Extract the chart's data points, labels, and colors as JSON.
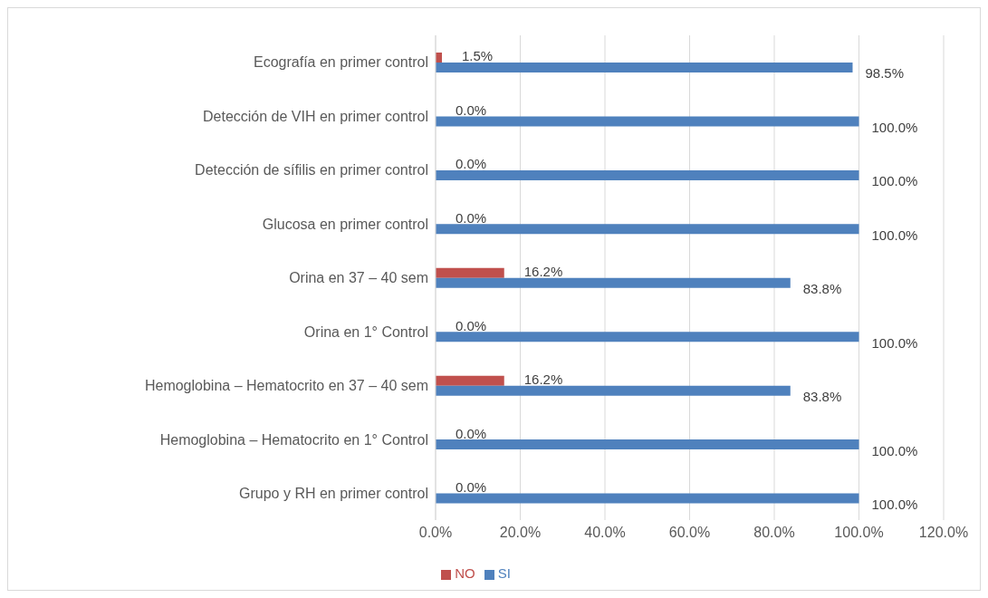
{
  "chart_data": {
    "type": "bar",
    "orientation": "horizontal",
    "categories": [
      "Ecografía en primer control",
      "Detección de VIH en primer control",
      "Detección de sífilis en primer control",
      "Glucosa en primer control",
      "Orina en 37 – 40 sem",
      "Orina en 1° Control",
      "Hemoglobina – Hematocrito en 37 – 40 sem",
      "Hemoglobina – Hematocrito en 1° Control",
      "Grupo y RH en primer control"
    ],
    "series": [
      {
        "name": "NO",
        "color": "#c0504d",
        "values": [
          1.5,
          0,
          0,
          0,
          16.2,
          0,
          16.2,
          0,
          0
        ],
        "value_labels": [
          "1.5%",
          "0.0%",
          "0.0%",
          "0.0%",
          "16.2%",
          "0.0%",
          "16.2%",
          "0.0%",
          "0.0%"
        ]
      },
      {
        "name": "SI",
        "color": "#4f81bd",
        "values": [
          98.5,
          100,
          100,
          100,
          83.8,
          100,
          83.8,
          100,
          100
        ],
        "value_labels": [
          "98.5%",
          "100.0%",
          "100.0%",
          "100.0%",
          "83.8%",
          "100.0%",
          "83.8%",
          "100.0%",
          "100.0%"
        ]
      }
    ],
    "xlim": [
      0,
      120
    ],
    "xticks": [
      {
        "value": 0,
        "label": "0.0%"
      },
      {
        "value": 20,
        "label": "20.0%"
      },
      {
        "value": 40,
        "label": "40.0%"
      },
      {
        "value": 60,
        "label": "60.0%"
      },
      {
        "value": 80,
        "label": "80.0%"
      },
      {
        "value": 100,
        "label": "100.0%"
      },
      {
        "value": 120,
        "label": "120.0%"
      }
    ],
    "grid": "x",
    "legend": "bottom"
  }
}
